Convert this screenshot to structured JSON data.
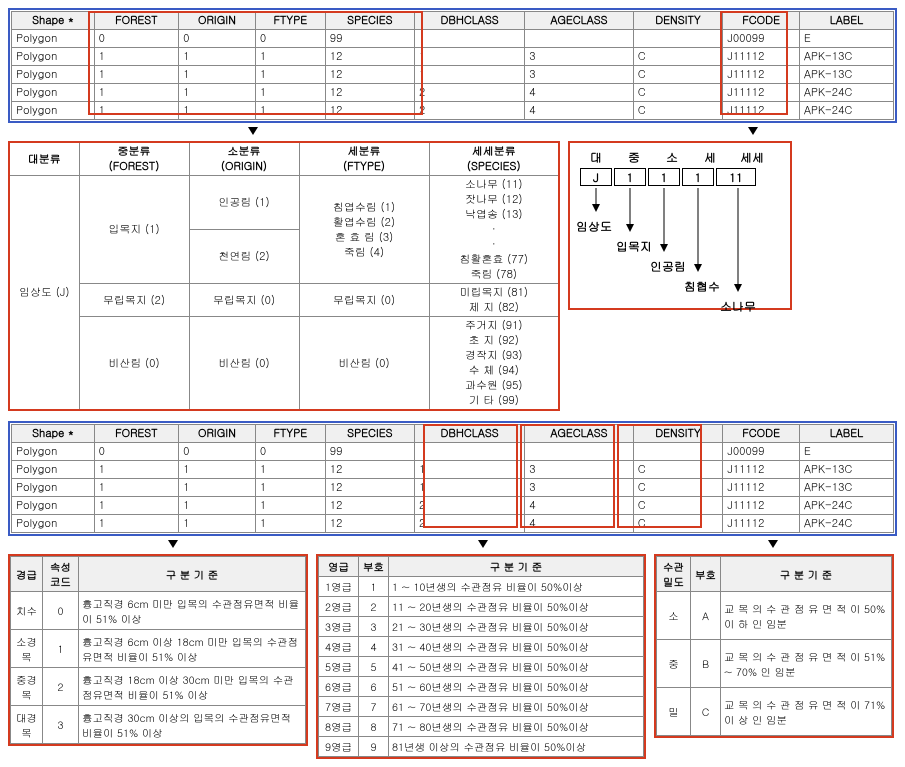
{
  "attr_table": {
    "columns": [
      "Shape *",
      "FOREST",
      "ORIGIN",
      "FTYPE",
      "SPECIES",
      "DBHCLASS",
      "AGECLASS",
      "DENSITY",
      "FCODE",
      "LABEL"
    ],
    "rows": [
      [
        "Polygon",
        "0",
        "0",
        "0",
        "99",
        "",
        "",
        "",
        "J00099",
        "E"
      ],
      [
        "Polygon",
        "1",
        "1",
        "1",
        "12",
        "1",
        "3",
        "C",
        "J11112",
        "APK-13C"
      ],
      [
        "Polygon",
        "1",
        "1",
        "1",
        "12",
        "1",
        "3",
        "C",
        "J11112",
        "APK-13C"
      ],
      [
        "Polygon",
        "1",
        "1",
        "1",
        "12",
        "2",
        "4",
        "C",
        "J11112",
        "APK-24C"
      ],
      [
        "Polygon",
        "1",
        "1",
        "1",
        "12",
        "2",
        "4",
        "C",
        "J11112",
        "APK-24C"
      ]
    ]
  },
  "class": {
    "headers": [
      "대분류",
      "중분류\n(FOREST)",
      "소분류\n(ORIGIN)",
      "세분류\n(FTYPE)",
      "세세분류\n(SPECIES)"
    ],
    "big": "임상도 (J)",
    "mid_rows": [
      {
        "forest": "입목지 (1)",
        "origin_a": "인공림  (1)",
        "origin_b": "천연림  (2)",
        "ftype": "침엽수림 (1)\n활엽수림 (2)\n혼 효 림 (3)\n죽림   (4)",
        "species": "소나무  (11)\n잣나무  (12)\n낙엽송  (13)\n·\n·\n침활혼효 (77)\n죽림   (78)"
      },
      {
        "forest": "무립목지 (2)",
        "origin": "무립목지 (0)",
        "ftype": "무립목지 (0)",
        "species": "미립목지 (81)\n제  지  (82)"
      },
      {
        "forest": "비산림 (0)",
        "origin": "비산림 (0)",
        "ftype": "비산림 (0)",
        "species": "주거지  (91)\n초 지  (92)\n경작지  (93)\n수 체  (94)\n과수원  (95)\n기 타  (99)"
      }
    ]
  },
  "code_diagram": {
    "head": [
      "대",
      "중",
      "소",
      "세",
      "세세"
    ],
    "cells": [
      "J",
      "1",
      "1",
      "1",
      "11"
    ],
    "labels": [
      "임상도",
      "입목지",
      "인공림",
      "침협수",
      "소나무"
    ]
  },
  "dbh": {
    "headers": [
      "경급",
      "속성\n코드",
      "구 분 기 준"
    ],
    "rows": [
      [
        "치수",
        "0",
        "흉고직경  6cm  미만  입목의 수관점유면적 비율이 51% 이상"
      ],
      [
        "소경목",
        "1",
        "흉고직경  6cm  이상  18cm  미만 입목의 수관점유면적 비율이 51% 이상"
      ],
      [
        "중경목",
        "2",
        "흉고직경  18cm  이상  30cm  미만 입목의 수관점유면적 비율이 51% 이상"
      ],
      [
        "대경목",
        "3",
        "흉고직경  30cm  이상의  입목의 수관점유면적 비율이 51% 이상"
      ]
    ]
  },
  "age": {
    "headers": [
      "영급",
      "부호",
      "구 분 기 준"
    ],
    "rows": [
      [
        "1영급",
        "1",
        "1 ~ 10년생의 수관점유 비율이 50%이상"
      ],
      [
        "2영급",
        "2",
        "11 ~ 20년생의 수관점유 비율이 50%이상"
      ],
      [
        "3영급",
        "3",
        "21 ~ 30년생의 수관점유 비율이 50%이상"
      ],
      [
        "4영급",
        "4",
        "31 ~ 40년생의 수관점유 비율이 50%이상"
      ],
      [
        "5영급",
        "5",
        "41 ~ 50년생의 수관점유 비율이 50%이상"
      ],
      [
        "6영급",
        "6",
        "51 ~ 60년생의 수관점유 비율이 50%이상"
      ],
      [
        "7영급",
        "7",
        "61 ~ 70년생의 수관점유 비율이 50%이상"
      ],
      [
        "8영급",
        "8",
        "71 ~ 80년생의 수관점유 비율이 50%이상"
      ],
      [
        "9영급",
        "9",
        "81년생 이상의 수관점유 비율이 50%이상"
      ]
    ]
  },
  "density": {
    "headers": [
      "수관\n밀도",
      "부호",
      "구 분 기 준"
    ],
    "rows": [
      [
        "소",
        "A",
        "교 목 의   수 관  점 유 면 적 이  50%  이 하 인 임분"
      ],
      [
        "중",
        "B",
        "교 목 의   수 관  점 유 면 적 이  51% ~ 70%  인 임분"
      ],
      [
        "밀",
        "C",
        "교 목 의   수 관  점 유 면 적 이  71%  이 상 인 임분"
      ]
    ]
  },
  "colors": {
    "highlight": "#d43a1f",
    "frame": "#3a5bc4",
    "border": "#888888",
    "bg": "#ffffff"
  }
}
